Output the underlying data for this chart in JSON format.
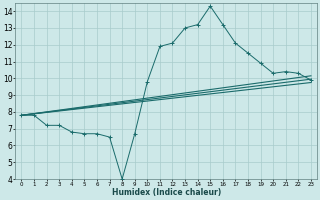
{
  "xlabel": "Humidex (Indice chaleur)",
  "ylabel": "",
  "xlim": [
    -0.5,
    23.5
  ],
  "ylim": [
    4,
    14.5
  ],
  "xticks": [
    0,
    1,
    2,
    3,
    4,
    5,
    6,
    7,
    8,
    9,
    10,
    11,
    12,
    13,
    14,
    15,
    16,
    17,
    18,
    19,
    20,
    21,
    22,
    23
  ],
  "yticks": [
    4,
    5,
    6,
    7,
    8,
    9,
    10,
    11,
    12,
    13,
    14
  ],
  "bg_color": "#cde8e8",
  "grid_color": "#a8cccc",
  "line_color": "#1a6b6b",
  "main_x": [
    0,
    1,
    2,
    3,
    4,
    5,
    6,
    7,
    8,
    9,
    10,
    11,
    12,
    13,
    14,
    15,
    16,
    17,
    18,
    19,
    20,
    21,
    22,
    23
  ],
  "main_y": [
    7.8,
    7.8,
    7.2,
    7.2,
    6.8,
    6.7,
    6.7,
    6.5,
    4.0,
    6.7,
    9.8,
    11.9,
    12.1,
    13.0,
    13.2,
    14.3,
    13.2,
    12.1,
    11.5,
    10.9,
    10.3,
    10.4,
    10.3,
    9.9
  ],
  "reg_lines": [
    {
      "x": [
        0,
        23
      ],
      "y": [
        7.8,
        9.75
      ]
    },
    {
      "x": [
        0,
        23
      ],
      "y": [
        7.8,
        9.95
      ]
    },
    {
      "x": [
        0,
        23
      ],
      "y": [
        7.8,
        10.15
      ]
    }
  ]
}
